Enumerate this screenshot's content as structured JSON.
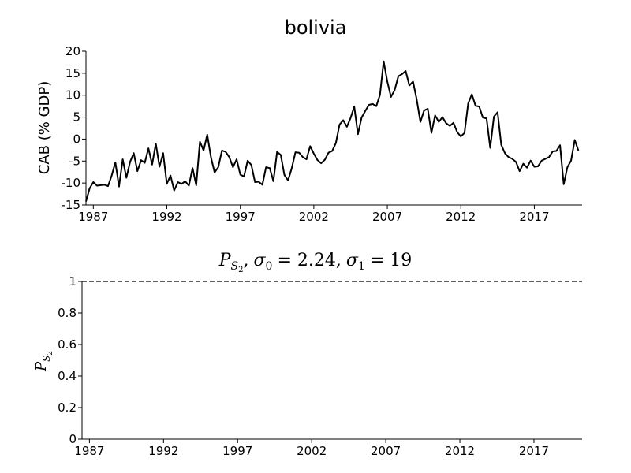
{
  "chart_data": [
    {
      "type": "line",
      "title": "bolivia",
      "ylabel": "CAB (% GDP)",
      "xlabel": "",
      "ylim": [
        -15,
        20
      ],
      "xlim": [
        1986.5,
        2020.25
      ],
      "yticks": [
        "20",
        "15",
        "10",
        "5",
        "0",
        "-5",
        "-10",
        "-15"
      ],
      "xticks": [
        "1987",
        "1992",
        "1997",
        "2002",
        "2007",
        "2012",
        "2017"
      ],
      "grid": false,
      "series": [
        {
          "color": "#000000",
          "x": [
            1986.5,
            1986.75,
            1987,
            1987.25,
            1987.5,
            1987.75,
            1988,
            1988.25,
            1988.5,
            1988.75,
            1989,
            1989.25,
            1989.5,
            1989.75,
            1990,
            1990.25,
            1990.5,
            1990.75,
            1991,
            1991.25,
            1991.5,
            1991.75,
            1992,
            1992.25,
            1992.5,
            1992.75,
            1993,
            1993.25,
            1993.5,
            1993.75,
            1994,
            1994.25,
            1994.5,
            1994.75,
            1995,
            1995.25,
            1995.5,
            1995.75,
            1996,
            1996.25,
            1996.5,
            1996.75,
            1997,
            1997.25,
            1997.5,
            1997.75,
            1998,
            1998.25,
            1998.5,
            1998.75,
            1999,
            1999.25,
            1999.5,
            1999.75,
            2000,
            2000.25,
            2000.5,
            2000.75,
            2001,
            2001.25,
            2001.5,
            2001.75,
            2002,
            2002.25,
            2002.5,
            2002.75,
            2003,
            2003.25,
            2003.5,
            2003.75,
            2004,
            2004.25,
            2004.5,
            2004.75,
            2005,
            2005.25,
            2005.5,
            2005.75,
            2006,
            2006.25,
            2006.5,
            2006.75,
            2007,
            2007.25,
            2007.5,
            2007.75,
            2008,
            2008.25,
            2008.5,
            2008.75,
            2009,
            2009.25,
            2009.5,
            2009.75,
            2010,
            2010.25,
            2010.5,
            2010.75,
            2011,
            2011.25,
            2011.5,
            2011.75,
            2012,
            2012.25,
            2012.5,
            2012.75,
            2013,
            2013.25,
            2013.5,
            2013.75,
            2014,
            2014.25,
            2014.5,
            2014.75,
            2015,
            2015.25,
            2015.5,
            2015.75,
            2016,
            2016.25,
            2016.5,
            2016.75,
            2017,
            2017.25,
            2017.5,
            2017.75,
            2018,
            2018.25,
            2018.5,
            2018.75,
            2019,
            2019.25,
            2019.5,
            2019.75,
            2020
          ],
          "values": [
            -14.2,
            -11.2,
            -9.8,
            -10.6,
            -10.5,
            -10.4,
            -10.7,
            -8.3,
            -5.3,
            -10.8,
            -4.6,
            -8.8,
            -5.2,
            -3.2,
            -7.3,
            -4.8,
            -5.4,
            -2.1,
            -5.8,
            -1.0,
            -6.3,
            -3.2,
            -10.2,
            -8.3,
            -11.7,
            -9.8,
            -10.2,
            -9.6,
            -10.6,
            -6.6,
            -10.5,
            -0.6,
            -2.6,
            1.0,
            -4.1,
            -7.6,
            -6.4,
            -2.6,
            -2.9,
            -4.1,
            -6.4,
            -4.6,
            -8.1,
            -8.5,
            -4.9,
            -5.9,
            -9.8,
            -9.7,
            -10.4,
            -6.4,
            -6.6,
            -9.6,
            -2.9,
            -3.6,
            -8.2,
            -9.4,
            -6.6,
            -3.0,
            -3.1,
            -4.1,
            -4.6,
            -1.6,
            -3.3,
            -4.8,
            -5.5,
            -4.7,
            -3.1,
            -2.7,
            -0.9,
            3.3,
            4.3,
            2.8,
            4.8,
            7.4,
            1.1,
            4.9,
            6.4,
            7.8,
            8.0,
            7.5,
            10.1,
            17.7,
            13.1,
            9.6,
            11.2,
            14.3,
            14.8,
            15.5,
            12.2,
            13.1,
            9.0,
            3.9,
            6.5,
            6.9,
            1.4,
            5.4,
            3.9,
            5.0,
            3.6,
            3.0,
            3.7,
            1.6,
            0.6,
            1.4,
            8.1,
            10.2,
            7.6,
            7.4,
            4.9,
            4.7,
            -2.0,
            5.1,
            6.1,
            -1.3,
            -3.2,
            -4.1,
            -4.5,
            -5.2,
            -7.3,
            -5.6,
            -6.5,
            -4.9,
            -6.3,
            -6.2,
            -4.9,
            -4.5,
            -4.1,
            -2.8,
            -2.7,
            -1.4,
            -10.3,
            -6.4,
            -4.9,
            -0.2,
            -2.6
          ]
        }
      ]
    },
    {
      "type": "line",
      "title": "P_{S_2}, σ₀ = 2.24, σ₁ = 19",
      "title_parts": {
        "p": "P",
        "sub_s": "S",
        "sub_2": "2",
        "comma1": ",",
        "sigma0": "σ",
        "sigma0_sub": "0",
        "eq0": "= 2.24,",
        "sigma1": "σ",
        "sigma1_sub": "1",
        "eq1": "= 19"
      },
      "ylabel": "P_{S_2}",
      "ylabel_parts": {
        "p": "P",
        "sub_s": "S",
        "sub_2": "2"
      },
      "xlabel": "",
      "ylim": [
        0,
        1
      ],
      "xlim": [
        1986.5,
        2020.25
      ],
      "yticks": [
        "1",
        "0.8",
        "0.6",
        "0.4",
        "0.2",
        "0"
      ],
      "xticks": [
        "1987",
        "1992",
        "1997",
        "2002",
        "2007",
        "2012",
        "2017"
      ],
      "grid": false,
      "series": [
        {
          "color": "#000000",
          "linestyle": "dashed",
          "x": [
            1986.5,
            2020.25
          ],
          "values": [
            1,
            1
          ]
        }
      ]
    }
  ]
}
